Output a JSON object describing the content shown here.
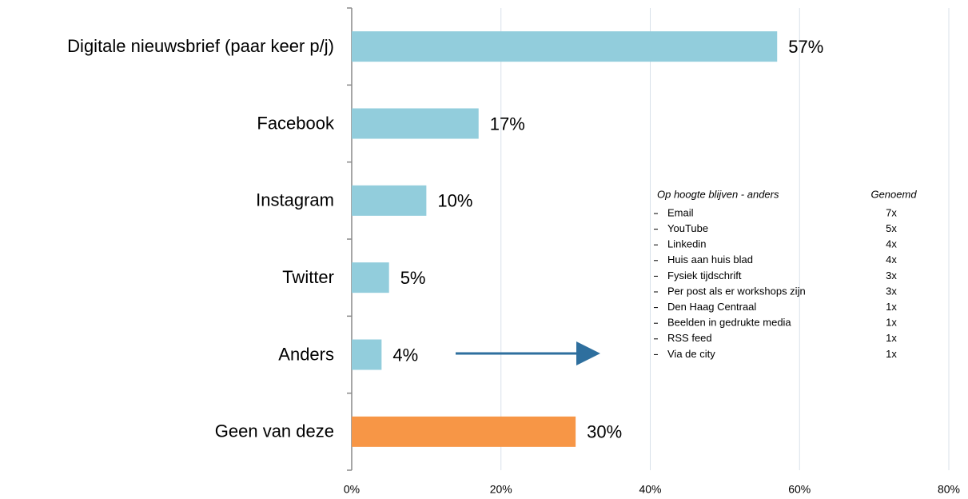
{
  "chart_data": {
    "type": "bar",
    "orientation": "horizontal",
    "categories": [
      "Digitale nieuwsbrief (paar keer p/j)",
      "Facebook",
      "Instagram",
      "Twitter",
      "Anders",
      "Geen van deze"
    ],
    "values": [
      57,
      17,
      10,
      5,
      4,
      30
    ],
    "value_labels": [
      "57%",
      "17%",
      "10%",
      "5%",
      "4%",
      "30%"
    ],
    "colors": [
      "#92cddc",
      "#92cddc",
      "#92cddc",
      "#92cddc",
      "#92cddc",
      "#f79646"
    ],
    "xlim": [
      0,
      80
    ],
    "xticks": [
      {
        "value": 0,
        "label": "0%"
      },
      {
        "value": 20,
        "label": "20%"
      },
      {
        "value": 40,
        "label": "40%"
      },
      {
        "value": 60,
        "label": "60%"
      },
      {
        "value": 80,
        "label": "80%"
      }
    ],
    "grid": true,
    "inset_table": {
      "header": [
        "Op hoogte blijven - anders",
        "Genoemd"
      ],
      "rows": [
        [
          "Email",
          "7x"
        ],
        [
          "YouTube",
          "5x"
        ],
        [
          "Linkedin",
          "4x"
        ],
        [
          "Huis aan huis blad",
          "4x"
        ],
        [
          "Fysiek tijdschrift",
          "3x"
        ],
        [
          "Per post als er workshops zijn",
          "3x"
        ],
        [
          "Den Haag Centraal",
          "1x"
        ],
        [
          "Beelden in gedrukte media",
          "1x"
        ],
        [
          "RSS feed",
          "1x"
        ],
        [
          "Via de city",
          "1x"
        ]
      ]
    }
  }
}
